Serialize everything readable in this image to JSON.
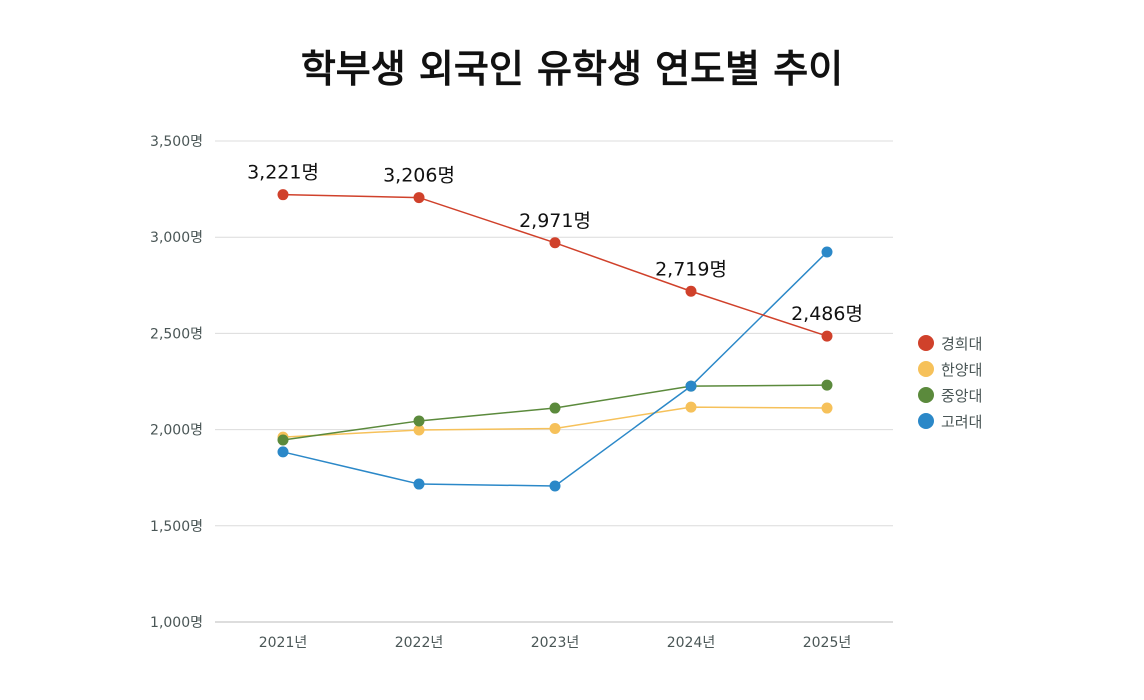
{
  "chart_data": {
    "type": "line",
    "title": "학부생 외국인 유학생 연도별 추이",
    "xlabel": "",
    "ylabel": "",
    "categories": [
      "2021년",
      "2022년",
      "2023년",
      "2024년",
      "2025년"
    ],
    "ylim": [
      1000,
      3500
    ],
    "yticks": [
      1000,
      1500,
      2000,
      2500,
      3000,
      3500
    ],
    "ytick_labels": [
      "1,000명",
      "1,500명",
      "2,000명",
      "2,500명",
      "3,000명",
      "3,500명"
    ],
    "grid": true,
    "legend_position": "right",
    "series": [
      {
        "name": "경희대",
        "color": "#d0412b",
        "values": [
          3221,
          3206,
          2971,
          2719,
          2486
        ],
        "data_labels": [
          "3,221명",
          "3,206명",
          "2,971명",
          "2,719명",
          "2,486명"
        ]
      },
      {
        "name": "한양대",
        "color": "#f6c15a",
        "values": [
          1961,
          1998,
          2006,
          2117,
          2112
        ]
      },
      {
        "name": "중앙대",
        "color": "#5b8a3c",
        "values": [
          1946,
          2045,
          2112,
          2226,
          2231
        ]
      },
      {
        "name": "고려대",
        "color": "#2b88c8",
        "values": [
          1884,
          1717,
          1707,
          2226,
          2923
        ]
      }
    ]
  }
}
